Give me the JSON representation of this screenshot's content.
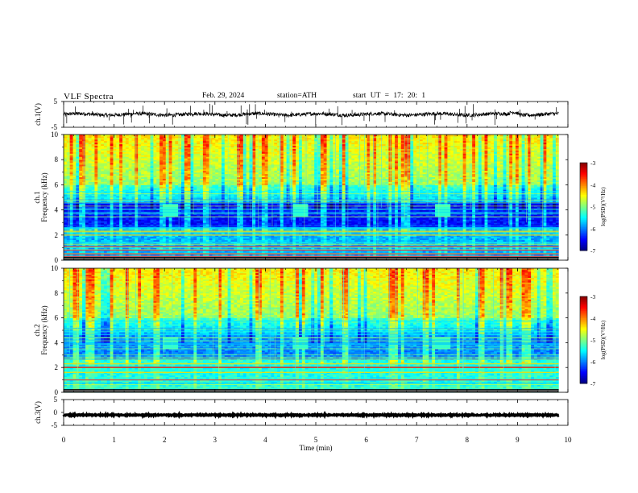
{
  "header": {
    "title": "VLF  Spectra",
    "date": "Feb. 29, 2024",
    "station": "station=ATH",
    "start": "start  UT  =   17: 20: 1"
  },
  "chart_data": [
    {
      "type": "line",
      "panel": "ch1-waveform",
      "ylabel": "ch.1(V)",
      "ylim": [
        -5,
        5
      ],
      "yticks": [
        "5",
        "-5"
      ],
      "xlim": [
        0,
        10
      ],
      "description_values": {
        "baseline_V": 0,
        "noise_amplitude_V": 1
      }
    },
    {
      "type": "heatmap",
      "panel": "ch1-spectrogram",
      "ylabel": "ch.1\nFrequency (kHz)",
      "ylabel_line1": "ch.1",
      "ylabel_line2": "Frequency (kHz)",
      "ylim": [
        0,
        10
      ],
      "yticks": [
        "0",
        "2",
        "4",
        "6",
        "8",
        "10"
      ],
      "xlim": [
        0,
        10
      ],
      "colorbar": {
        "label": "log(PSD)(V²/Hz)",
        "range": [
          -7,
          -3
        ],
        "ticks": [
          "-3",
          "-4",
          "-5",
          "-6",
          "-7"
        ]
      },
      "bursts_min": [
        2.1,
        4.7,
        7.5
      ],
      "strong_lines_kHz": [
        0.3,
        0.5,
        0.8,
        1.1,
        2.0,
        2.3
      ]
    },
    {
      "type": "heatmap",
      "panel": "ch2-spectrogram",
      "ylabel_line1": "ch.2",
      "ylabel_line2": "Frequency (kHz)",
      "ylim": [
        0,
        10
      ],
      "yticks": [
        "0",
        "2",
        "4",
        "6",
        "8",
        "10"
      ],
      "xlim": [
        0,
        10
      ],
      "colorbar": {
        "label": "log(PSD)(V²/Hz)",
        "range": [
          -7,
          -3
        ],
        "ticks": [
          "-3",
          "-4",
          "-5",
          "-6",
          "-7"
        ]
      },
      "bursts_min": [
        2.1,
        4.7,
        7.5
      ],
      "strong_lines_kHz": [
        1.0,
        1.6,
        2.0,
        2.3
      ]
    },
    {
      "type": "line",
      "panel": "ch3-waveform",
      "ylabel": "ch.3(V)",
      "ylim": [
        -5,
        5
      ],
      "yticks": [
        "5",
        "0",
        "-5"
      ],
      "xlim": [
        0,
        10
      ],
      "xlabel": "Time  (min)",
      "xticks": [
        "0",
        "1",
        "2",
        "3",
        "4",
        "5",
        "6",
        "7",
        "8",
        "9",
        "10"
      ],
      "description_values": {
        "baseline_V": -1,
        "noise_amplitude_V": 0.2
      }
    }
  ]
}
